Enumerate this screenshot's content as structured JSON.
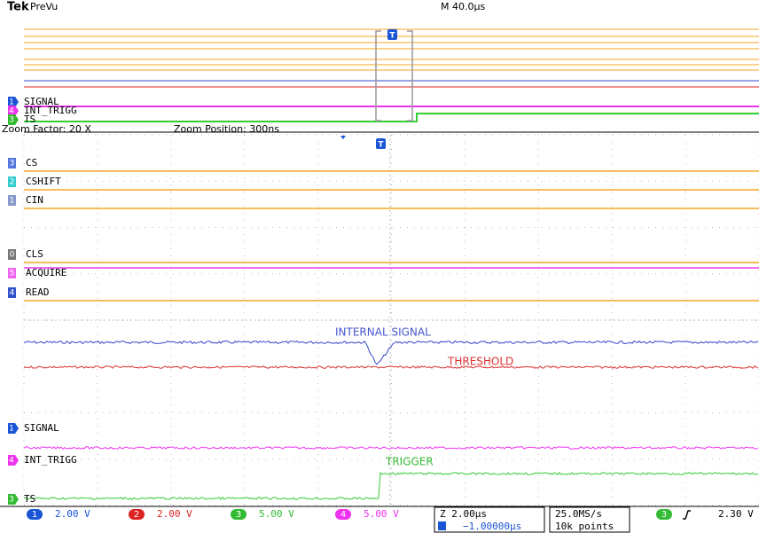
{
  "header": {
    "brand": "Tek",
    "mode": "PreVu",
    "timebase": "M 40.0µs",
    "trigger_icon": "T"
  },
  "overview_labels": [
    {
      "marker": "1",
      "name": "SIGNAL"
    },
    {
      "marker": "4",
      "name": "INT_TRIGG"
    },
    {
      "marker": "3",
      "name": "TS"
    }
  ],
  "zoom": {
    "factor": "Zoom Factor: 20 X",
    "position": "Zoom Position: 300ns"
  },
  "digital_channels": [
    {
      "marker": "3",
      "name": "CS"
    },
    {
      "marker": "2",
      "name": "CSHIFT"
    },
    {
      "marker": "1",
      "name": "CIN"
    },
    {
      "marker": "0",
      "name": "CLS"
    },
    {
      "marker": "5",
      "name": "ACQUIRE"
    },
    {
      "marker": "4",
      "name": "READ"
    }
  ],
  "annotations": [
    "INTERNAL SIGNAL",
    "THRESHOLD",
    "TRIGGER"
  ],
  "analog_labels": [
    {
      "marker": "1",
      "name": "SIGNAL"
    },
    {
      "marker": "4",
      "name": "INT_TRIGG"
    },
    {
      "marker": "3",
      "name": "TS"
    }
  ],
  "status": {
    "channels": [
      {
        "num": "1",
        "scale": "2.00 V"
      },
      {
        "num": "2",
        "scale": "2.00 V"
      },
      {
        "num": "3",
        "scale": "5.00 V"
      },
      {
        "num": "4",
        "scale": "5.00 V"
      }
    ],
    "zoom_time": "Z 2.00µs",
    "delay": "−1.00000µs",
    "sample_rate": "25.0MS/s",
    "record": "10k points",
    "trigger_source": "3",
    "trigger_level": "2.30 V"
  }
}
